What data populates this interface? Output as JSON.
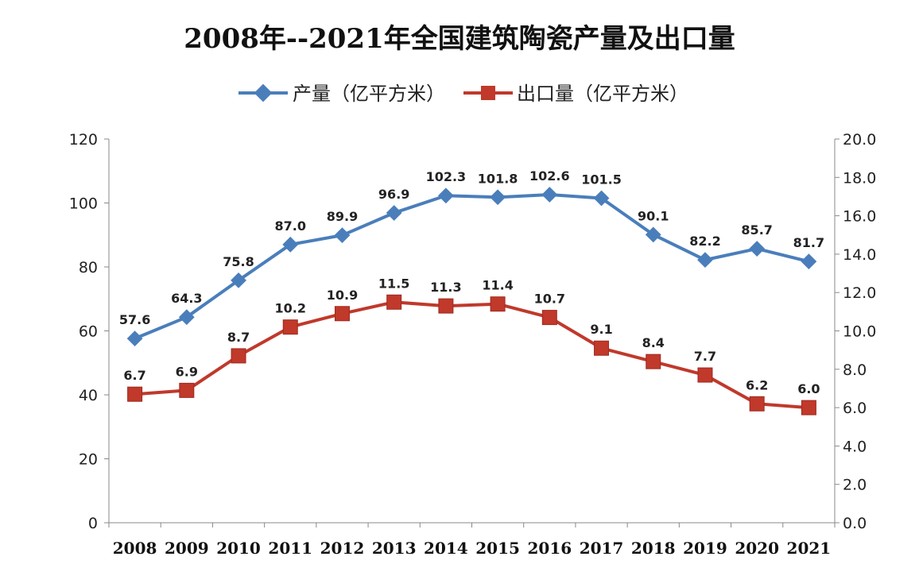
{
  "chart_data": {
    "type": "line",
    "title": "2008年--2021年全国建筑陶瓷产量及出口量",
    "categories": [
      "2008",
      "2009",
      "2010",
      "2011",
      "2012",
      "2013",
      "2014",
      "2015",
      "2016",
      "2017",
      "2018",
      "2019",
      "2020",
      "2021"
    ],
    "series": [
      {
        "name": "产量（亿平方米）",
        "axis": "left",
        "color": "#4a7ebb",
        "marker": "diamond",
        "values": [
          57.6,
          64.3,
          75.8,
          87.0,
          89.9,
          96.9,
          102.3,
          101.8,
          102.6,
          101.5,
          90.1,
          82.2,
          85.7,
          81.7
        ],
        "labels": [
          "57.6",
          "64.3",
          "75.8",
          "87.0",
          "89.9",
          "96.9",
          "102.3",
          "101.8",
          "102.6",
          "101.5",
          "90.1",
          "82.2",
          "85.7",
          "81.7"
        ]
      },
      {
        "name": "出口量（亿平方米）",
        "axis": "right",
        "color": "#c0392b",
        "marker": "square",
        "values": [
          6.7,
          6.9,
          8.7,
          10.2,
          10.9,
          11.5,
          11.3,
          11.4,
          10.7,
          9.1,
          8.4,
          7.7,
          6.2,
          6.0
        ],
        "labels": [
          "6.7",
          "6.9",
          "8.7",
          "10.2",
          "10.9",
          "11.5",
          "11.3",
          "11.4",
          "10.7",
          "9.1",
          "8.4",
          "7.7",
          "6.2",
          "6.0"
        ]
      }
    ],
    "y_left": {
      "min": 0,
      "max": 120,
      "ticks": [
        "0",
        "20",
        "40",
        "60",
        "80",
        "100",
        "120"
      ]
    },
    "y_right": {
      "min": 0,
      "max": 20,
      "ticks": [
        "0.0",
        "2.0",
        "4.0",
        "6.0",
        "8.0",
        "10.0",
        "12.0",
        "14.0",
        "16.0",
        "18.0",
        "20.0"
      ]
    },
    "grid": false,
    "legend_position": "top-center"
  }
}
